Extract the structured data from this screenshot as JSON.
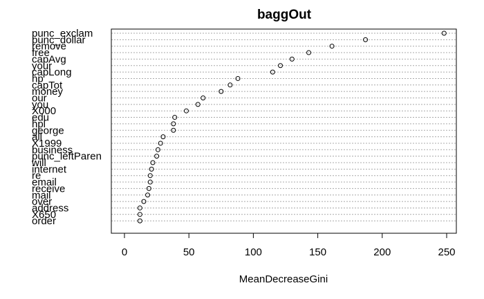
{
  "chart_data": {
    "type": "scatter",
    "title": "baggOut",
    "xlabel": "MeanDecreaseGini",
    "ylabel": "",
    "xlim": [
      -10,
      260
    ],
    "xticks": [
      0,
      50,
      100,
      150,
      200,
      250
    ],
    "grid": "dotted horizontal per variable",
    "categories": [
      "punc_exclam",
      "punc_dollar",
      "remove",
      "free",
      "capAvg",
      "your",
      "capLong",
      "hp",
      "capTot",
      "money",
      "our",
      "you",
      "X000",
      "edu",
      "hpl",
      "george",
      "all",
      "X1999",
      "business",
      "punc_leftParen",
      "will",
      "internet",
      "re",
      "email",
      "receive",
      "mail",
      "over",
      "address",
      "X650",
      "order"
    ],
    "values": [
      248,
      187,
      161,
      143,
      130,
      121,
      115,
      88,
      82,
      75,
      61,
      57,
      48,
      39,
      38,
      38,
      30,
      28,
      26,
      25,
      22,
      21,
      20,
      20,
      19,
      18,
      15,
      12,
      12,
      12
    ]
  }
}
